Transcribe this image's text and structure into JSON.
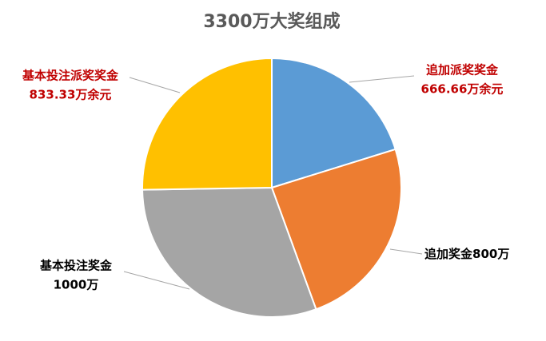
{
  "chart_data": {
    "type": "pie",
    "title": "3300万大奖组成",
    "categories": [
      "追加派奖奖金",
      "追加奖金",
      "基本投注奖金",
      "基本投注派奖奖金"
    ],
    "values": [
      666.66,
      800,
      1000,
      833.33
    ],
    "value_labels": [
      "666.66万余元",
      "800万",
      "1000万",
      "833.33万余元"
    ],
    "colors": [
      "#5b9bd5",
      "#ed7d31",
      "#a5a5a5",
      "#ffc000"
    ],
    "label_colors": [
      "#c00000",
      "#000000",
      "#000000",
      "#c00000"
    ]
  }
}
